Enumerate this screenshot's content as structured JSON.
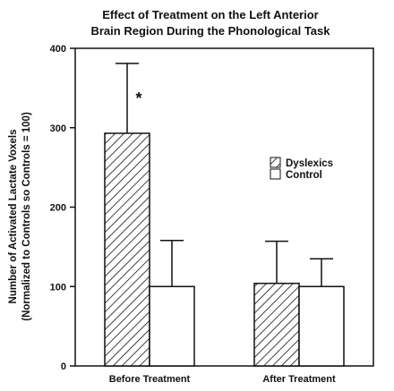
{
  "chart_data": {
    "type": "bar",
    "title_lines": [
      "Effect of Treatment on the Left Anterior",
      "Brain Region During the Phonological Task"
    ],
    "ylabel_lines": [
      "Number of Activated Lactate Voxels",
      "(Normalized to Controls so Controls = 100)"
    ],
    "xlabel": "",
    "categories": [
      "Before Treatment",
      "After Treatment"
    ],
    "ylim": [
      0,
      400
    ],
    "yticks": [
      0,
      100,
      200,
      300,
      400
    ],
    "series": [
      {
        "name": "Dyslexics",
        "values": [
          293,
          104
        ],
        "error": [
          88,
          53
        ],
        "fill": "hatched"
      },
      {
        "name": "Control",
        "values": [
          100,
          100
        ],
        "error": [
          58,
          35
        ],
        "fill": "white"
      }
    ],
    "annotations": [
      {
        "text": "*",
        "category": "Before Treatment",
        "series": "Dyslexics"
      }
    ],
    "legend_position": "right-middle",
    "grid": false
  }
}
